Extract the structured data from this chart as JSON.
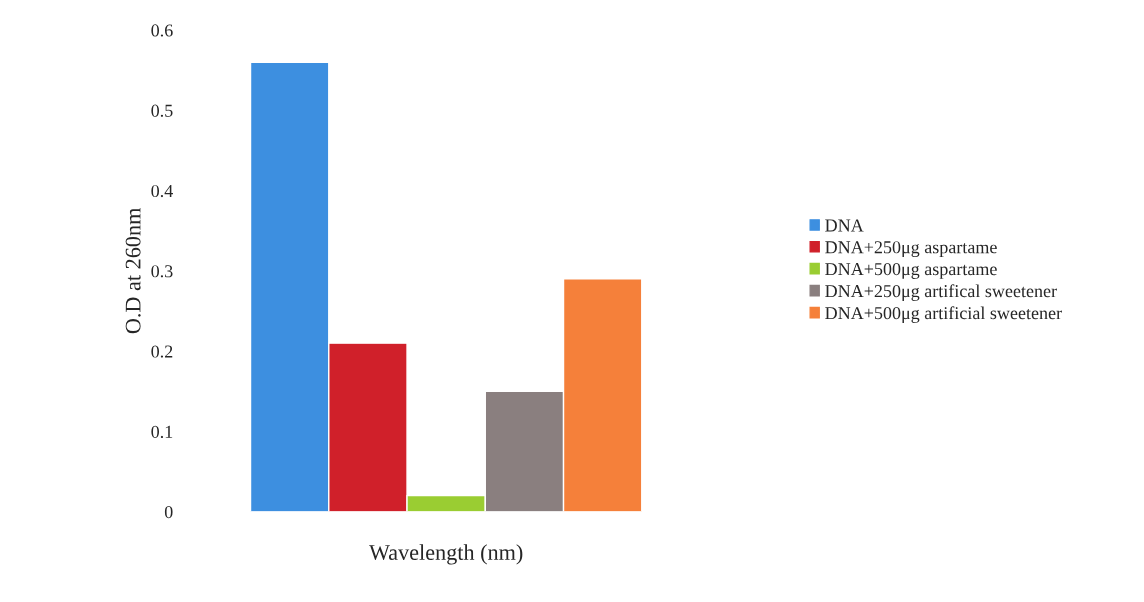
{
  "chart_data": {
    "type": "bar",
    "xlabel": "Wavelength (nm)",
    "ylabel": "O.D at 260nm",
    "categories": [
      null
    ],
    "series": [
      {
        "name": "DNA",
        "color": "#3d8fe0",
        "values": [
          0.56
        ]
      },
      {
        "name": "DNA+250μg aspartame",
        "color": "#d0202a",
        "values": [
          0.21
        ]
      },
      {
        "name": "DNA+500μg aspartame",
        "color": "#9acd32",
        "values": [
          0.02
        ]
      },
      {
        "name": "DNA+250μg artifical sweetener",
        "color": "#8a7f7f",
        "values": [
          0.15
        ]
      },
      {
        "name": "DNA+500μg artificial sweetener",
        "color": "#f5803a",
        "values": [
          0.29
        ]
      }
    ],
    "ylim": [
      0,
      0.6
    ],
    "yticks": [
      0,
      0.1,
      0.2,
      0.3,
      0.4,
      0.5,
      0.6
    ],
    "grid": false,
    "legend": "right"
  }
}
